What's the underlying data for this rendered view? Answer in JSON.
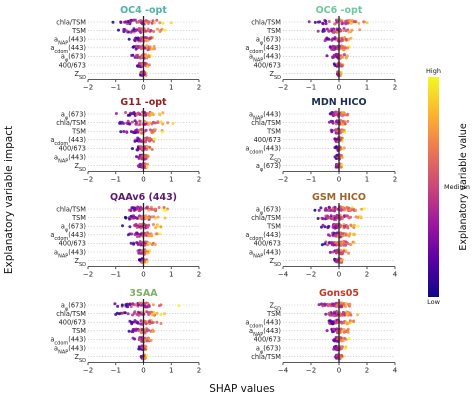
{
  "figure": {
    "ylabel": "Explanatory variable impact",
    "xlabel": "SHAP values",
    "colorbar": {
      "label": "Explanatory variable value",
      "ticks": [
        "High",
        "Medium",
        "Low"
      ],
      "colormap": [
        "#0d0887",
        "#5a01a5",
        "#9b179e",
        "#cb4679",
        "#ec7852",
        "#fdb32e",
        "#f0f921"
      ]
    }
  },
  "chart_data": [
    {
      "type": "scatter",
      "title": "OC4 -opt",
      "title_color": "#4fb3a8",
      "features": [
        "chla/TSM",
        "TSM",
        "a_NAP(443)",
        "a_cdom(443)",
        "a_φ(673)",
        "400/673",
        "Z_SD"
      ],
      "xlim": [
        -2,
        2
      ],
      "xticks": [
        "−2",
        "−1",
        "0",
        "1",
        "2"
      ],
      "spreads": [
        1.8,
        1.5,
        0.9,
        0.8,
        0.6,
        0.35,
        0.2
      ]
    },
    {
      "type": "scatter",
      "title": "OC6 -opt",
      "title_color": "#6dc9a0",
      "features": [
        "chla/TSM",
        "TSM",
        "a_φ(673)",
        "a_cdom(443)",
        "a_NAP(443)",
        "400/673",
        "Z_SD"
      ],
      "xlim": [
        -2,
        2
      ],
      "xticks": [
        "−2",
        "−1",
        "0",
        "1",
        "2"
      ],
      "spreads": [
        1.7,
        1.4,
        0.9,
        0.8,
        0.6,
        0.3,
        0.15
      ]
    },
    {
      "type": "scatter",
      "title": "G11 -opt",
      "title_color": "#9b1c1c",
      "features": [
        "a_φ(673)",
        "chla/TSM",
        "TSM",
        "a_cdom(443)",
        "400/673",
        "a_NAP(443)",
        "Z_SD"
      ],
      "xlim": [
        -2,
        2
      ],
      "xticks": [
        "−2",
        "−1",
        "0",
        "1",
        "2"
      ],
      "spreads": [
        1.5,
        1.6,
        1.1,
        0.8,
        0.6,
        0.4,
        0.3
      ]
    },
    {
      "type": "scatter",
      "title": "MDN HICO",
      "title_color": "#1d2d4f",
      "features": [
        "a_NAP(443)",
        "chla/TSM",
        "TSM",
        "400/673",
        "a_cdom(443)",
        "Z_SD",
        "a_φ(673)"
      ],
      "xlim": [
        -2,
        2
      ],
      "xticks": [
        "−2",
        "−1",
        "0",
        "1",
        "2"
      ],
      "spreads": [
        0.8,
        0.6,
        0.5,
        0.35,
        0.3,
        0.25,
        0.2
      ]
    },
    {
      "type": "scatter",
      "title": "QAAv6 (443)",
      "title_color": "#5b1a6e",
      "features": [
        "chla/TSM",
        "TSM",
        "a_φ(673)",
        "a_cdom(443)",
        "400/673",
        "a_NAP(443)",
        "Z_SD"
      ],
      "xlim": [
        -2,
        2
      ],
      "xticks": [
        "−2",
        "−1",
        "0",
        "1",
        "2"
      ],
      "spreads": [
        1.6,
        1.3,
        1.2,
        0.9,
        0.7,
        0.4,
        0.3
      ]
    },
    {
      "type": "scatter",
      "title": "GSM HICO",
      "title_color": "#a0642a",
      "features": [
        "a_φ(673)",
        "chla/TSM",
        "TSM",
        "a_cdom(443)",
        "400/673",
        "a_NAP(443)",
        "Z_SD"
      ],
      "xlim": [
        -4,
        4
      ],
      "xticks": [
        "−4",
        "−2",
        "0",
        "2",
        "4"
      ],
      "spreads": [
        3.0,
        2.8,
        2.2,
        1.8,
        2.5,
        1.2,
        0.6
      ]
    },
    {
      "type": "scatter",
      "title": "3SAA",
      "title_color": "#7fb069",
      "features": [
        "a_φ(673)",
        "chla/TSM",
        "400/673",
        "TSM",
        "a_cdom(443)",
        "a_NAP(443)",
        "Z_SD"
      ],
      "xlim": [
        -2,
        2
      ],
      "xticks": [
        "−2",
        "−1",
        "0",
        "1",
        "2"
      ],
      "spreads": [
        1.7,
        1.5,
        1.0,
        0.9,
        0.6,
        0.3,
        0.2
      ]
    },
    {
      "type": "scatter",
      "title": "Gons05",
      "title_color": "#c23b22",
      "features": [
        "Z_SD",
        "TSM",
        "a_cdom(443)",
        "a_NAP(443)",
        "400/673",
        "a_φ(673)",
        "chla/TSM"
      ],
      "xlim": [
        -4,
        4
      ],
      "xticks": [
        "−4",
        "−2",
        "0",
        "2",
        "4"
      ],
      "spreads": [
        2.5,
        2.0,
        1.8,
        1.4,
        1.0,
        0.7,
        0.5
      ]
    }
  ]
}
